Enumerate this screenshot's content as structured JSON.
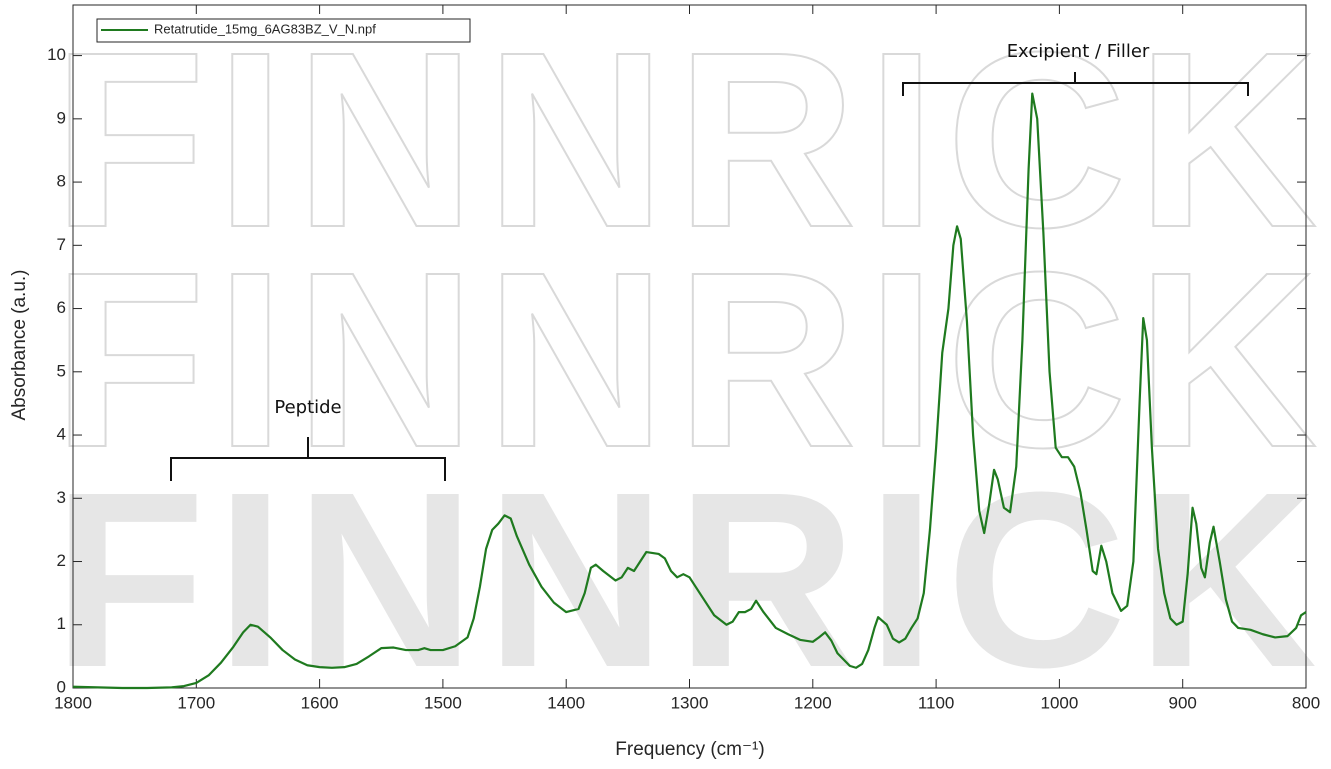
{
  "chart_data": {
    "type": "line",
    "watermark": "FINNRICK",
    "xlabel": "Frequency (cm⁻¹)",
    "ylabel": "Absorbance (a.u.)",
    "annotations": [
      "Peptide",
      "Excipient / Filler"
    ],
    "legend": "upper left",
    "xlim": [
      1800,
      800
    ],
    "ylim": [
      0,
      10.8
    ],
    "xticks": [
      1800,
      1700,
      1600,
      1500,
      1400,
      1300,
      1200,
      1100,
      1000,
      900,
      800
    ],
    "yticks": [
      0,
      1,
      2,
      3,
      4,
      5,
      6,
      7,
      8,
      9,
      10
    ],
    "grid": false,
    "x": [
      1800,
      1780,
      1760,
      1740,
      1720,
      1710,
      1700,
      1690,
      1680,
      1670,
      1662,
      1656,
      1650,
      1640,
      1630,
      1620,
      1610,
      1600,
      1590,
      1580,
      1570,
      1560,
      1550,
      1540,
      1530,
      1520,
      1515,
      1510,
      1500,
      1490,
      1480,
      1475,
      1470,
      1465,
      1460,
      1455,
      1450,
      1445,
      1440,
      1430,
      1420,
      1410,
      1400,
      1390,
      1385,
      1380,
      1376,
      1370,
      1360,
      1355,
      1350,
      1345,
      1340,
      1335,
      1325,
      1320,
      1315,
      1310,
      1305,
      1300,
      1290,
      1280,
      1270,
      1265,
      1260,
      1255,
      1250,
      1246,
      1240,
      1230,
      1220,
      1210,
      1200,
      1195,
      1190,
      1185,
      1180,
      1170,
      1165,
      1160,
      1155,
      1150,
      1147,
      1140,
      1135,
      1130,
      1125,
      1120,
      1115,
      1110,
      1105,
      1100,
      1095,
      1090,
      1086,
      1083,
      1080,
      1075,
      1070,
      1065,
      1061,
      1057,
      1053,
      1050,
      1045,
      1040,
      1035,
      1030,
      1025,
      1022,
      1018,
      1013,
      1008,
      1003,
      998,
      993,
      988,
      983,
      978,
      973,
      970,
      966,
      962,
      957,
      950,
      945,
      940,
      935,
      932,
      929,
      925,
      920,
      915,
      910,
      905,
      900,
      896,
      892,
      889,
      885,
      882,
      878,
      875,
      870,
      865,
      860,
      855,
      845,
      835,
      825,
      815,
      808,
      804,
      800
    ],
    "series": [
      {
        "name": "Retatrutide_15mg_6AG83BZ_V_N.npf",
        "color": "#1f7a1f",
        "values": [
          0.02,
          0.01,
          0.0,
          0.0,
          0.01,
          0.03,
          0.08,
          0.2,
          0.4,
          0.65,
          0.88,
          1.0,
          0.97,
          0.8,
          0.6,
          0.45,
          0.36,
          0.33,
          0.32,
          0.33,
          0.38,
          0.5,
          0.63,
          0.64,
          0.6,
          0.6,
          0.63,
          0.6,
          0.6,
          0.66,
          0.8,
          1.1,
          1.6,
          2.2,
          2.5,
          2.6,
          2.73,
          2.68,
          2.4,
          1.95,
          1.6,
          1.35,
          1.2,
          1.25,
          1.5,
          1.9,
          1.95,
          1.85,
          1.7,
          1.75,
          1.9,
          1.85,
          2.0,
          2.15,
          2.12,
          2.05,
          1.85,
          1.75,
          1.8,
          1.75,
          1.45,
          1.15,
          1.0,
          1.05,
          1.2,
          1.2,
          1.25,
          1.38,
          1.2,
          0.95,
          0.85,
          0.76,
          0.73,
          0.8,
          0.88,
          0.75,
          0.55,
          0.35,
          0.32,
          0.38,
          0.6,
          0.95,
          1.12,
          1.0,
          0.78,
          0.72,
          0.78,
          0.95,
          1.1,
          1.5,
          2.5,
          3.8,
          5.3,
          6.0,
          7.0,
          7.3,
          7.1,
          5.8,
          4.0,
          2.8,
          2.45,
          2.9,
          3.45,
          3.3,
          2.85,
          2.78,
          3.5,
          5.5,
          8.2,
          9.4,
          9.0,
          7.2,
          5.0,
          3.8,
          3.65,
          3.65,
          3.5,
          3.1,
          2.5,
          1.85,
          1.8,
          2.25,
          2.0,
          1.5,
          1.22,
          1.3,
          2.0,
          4.5,
          5.85,
          5.5,
          3.8,
          2.2,
          1.5,
          1.1,
          1.0,
          1.05,
          1.8,
          2.85,
          2.6,
          1.9,
          1.75,
          2.3,
          2.55,
          2.0,
          1.4,
          1.05,
          0.95,
          0.92,
          0.85,
          0.8,
          0.82,
          0.95,
          1.15,
          1.2
        ]
      }
    ]
  }
}
